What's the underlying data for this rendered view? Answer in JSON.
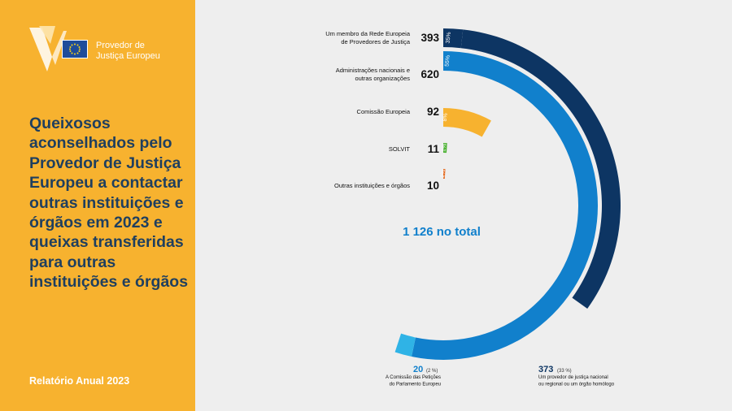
{
  "header": {
    "org_name_line1": "Provedor de",
    "org_name_line2": "Justiça Europeu",
    "title": "Queixosos aconselhados pelo Provedor de Justiça Europeu a contactar outras instituições e órgãos em 2023 e queixas transferidas para outras instituições e órgãos",
    "footer": "Relatório Anual 2023"
  },
  "colors": {
    "panel": "#f7b22f",
    "title_text": "#1f3f5f",
    "dark_blue": "#0d3563",
    "mid_blue": "#1180cc",
    "light_blue": "#2fb3e6",
    "yellow": "#f7b22f",
    "green": "#4bb132",
    "orange": "#e3661a"
  },
  "chart_data": {
    "type": "radial-bar",
    "total_label": "1 126 no total",
    "series": [
      {
        "name_lines": [
          "Um membro da Rede Europeia",
          "de Provedores de Justiça"
        ],
        "value": 393,
        "pct_label": "35%",
        "color": "#0d3563",
        "sub": {
          "value": 373,
          "pct_label": "(33 %)",
          "desc_lines": [
            "Um provedor de justiça nacional",
            "ou regional ou um órgão homólogo"
          ],
          "color": "#0d3563"
        }
      },
      {
        "name_lines": [
          "Administrações nacionais e",
          "outras organizações"
        ],
        "value": 620,
        "pct_label": "55%",
        "color": "#1180cc",
        "sub": {
          "value": 20,
          "pct_label": "(2 %)",
          "desc_lines": [
            "A Comissão das Petições",
            "do Parlamento Europeu"
          ],
          "color": "#2fb3e6"
        }
      },
      {
        "name_lines": [
          "Comissão Europeia"
        ],
        "value": 92,
        "pct_label": "8%",
        "color": "#f7b22f"
      },
      {
        "name_lines": [
          "SOLVIT"
        ],
        "value": 11,
        "pct_label": "1%",
        "color": "#4bb132"
      },
      {
        "name_lines": [
          "Outras instituições e órgãos"
        ],
        "value": 10,
        "pct_label": "1%",
        "color": "#e3661a"
      }
    ]
  }
}
